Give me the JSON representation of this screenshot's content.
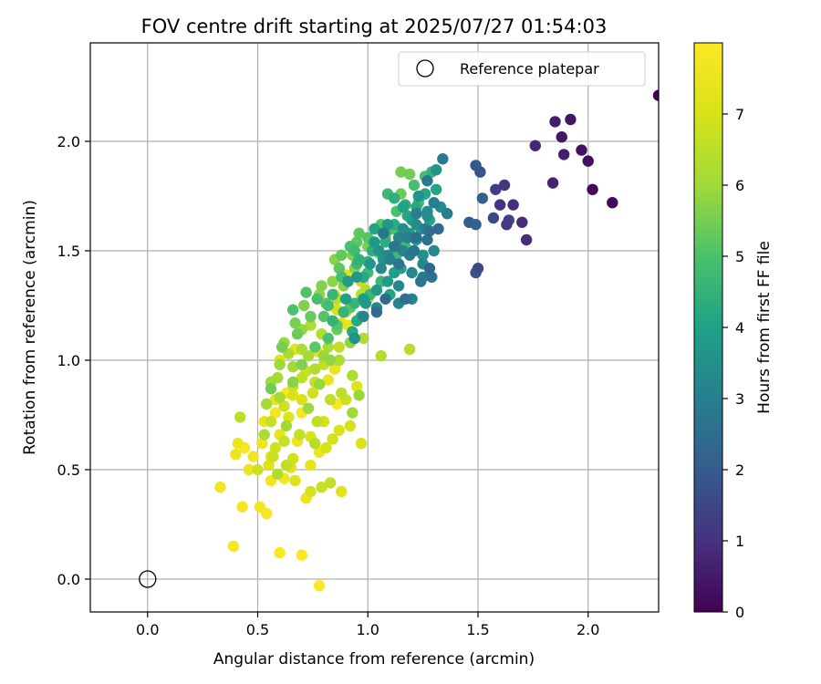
{
  "chart_data": {
    "type": "scatter",
    "title": "FOV centre drift starting at 2025/07/27 01:54:03",
    "xlabel": "Angular distance from reference (arcmin)",
    "ylabel": "Rotation from reference (arcmin)",
    "xlim": [
      -0.26,
      2.32
    ],
    "ylim": [
      -0.15,
      2.45
    ],
    "x_ticks": [
      "0.0",
      "0.5",
      "1.0",
      "1.5",
      "2.0"
    ],
    "x_tick_values": [
      0.0,
      0.5,
      1.0,
      1.5,
      2.0
    ],
    "y_ticks": [
      "0.0",
      "0.5",
      "1.0",
      "1.5",
      "2.0"
    ],
    "y_tick_values": [
      0.0,
      0.5,
      1.0,
      1.5,
      2.0
    ],
    "grid": true,
    "legend": {
      "placement": "top-right",
      "label": "Reference platepar"
    },
    "reference_point": {
      "x": 0.0,
      "y": 0.0
    },
    "colorbar": {
      "label": "Hours from first FF file",
      "colormap": "viridis",
      "range": [
        0,
        8
      ],
      "ticks": [
        "0",
        "1",
        "2",
        "3",
        "4",
        "5",
        "6",
        "7"
      ],
      "tick_values": [
        0,
        1,
        2,
        3,
        4,
        5,
        6,
        7
      ]
    },
    "points": [
      [
        2.32,
        2.21,
        0.0
      ],
      [
        2.02,
        1.78,
        0.1
      ],
      [
        2.11,
        1.72,
        0.15
      ],
      [
        2.0,
        1.91,
        0.25
      ],
      [
        1.97,
        1.96,
        0.35
      ],
      [
        1.92,
        2.1,
        0.4
      ],
      [
        1.88,
        2.02,
        0.45
      ],
      [
        1.85,
        2.09,
        0.55
      ],
      [
        1.89,
        1.94,
        0.6
      ],
      [
        1.84,
        1.81,
        0.7
      ],
      [
        1.76,
        1.98,
        0.8
      ],
      [
        1.7,
        1.63,
        0.85
      ],
      [
        1.72,
        1.55,
        0.9
      ],
      [
        1.66,
        1.71,
        0.95
      ],
      [
        1.6,
        1.71,
        1.05
      ],
      [
        1.62,
        1.8,
        1.1
      ],
      [
        1.63,
        1.62,
        1.2
      ],
      [
        1.58,
        1.78,
        1.3
      ],
      [
        1.64,
        1.64,
        1.4
      ],
      [
        1.57,
        1.65,
        1.5
      ],
      [
        1.5,
        1.42,
        1.6
      ],
      [
        1.49,
        1.4,
        1.7
      ],
      [
        1.51,
        1.86,
        1.8
      ],
      [
        1.49,
        1.89,
        1.9
      ],
      [
        1.46,
        1.63,
        2.0
      ],
      [
        1.52,
        1.74,
        2.1
      ],
      [
        1.49,
        1.62,
        2.2
      ],
      [
        1.28,
        1.42,
        2.3
      ],
      [
        1.32,
        1.6,
        2.4
      ],
      [
        1.28,
        1.59,
        2.5
      ],
      [
        1.29,
        1.38,
        2.6
      ],
      [
        1.24,
        1.36,
        2.7
      ],
      [
        1.27,
        1.82,
        2.8
      ],
      [
        1.34,
        1.92,
        2.85
      ],
      [
        1.36,
        1.67,
        2.9
      ],
      [
        1.3,
        1.72,
        2.95
      ],
      [
        1.22,
        1.67,
        3.0
      ],
      [
        1.18,
        1.56,
        3.05
      ],
      [
        1.14,
        1.56,
        3.1
      ],
      [
        1.2,
        1.28,
        3.15
      ],
      [
        1.14,
        1.26,
        3.2
      ],
      [
        1.04,
        1.24,
        3.25
      ],
      [
        1.06,
        1.42,
        3.3
      ],
      [
        1.09,
        1.48,
        3.35
      ],
      [
        1.16,
        1.6,
        3.4
      ],
      [
        1.27,
        1.68,
        3.45
      ],
      [
        1.25,
        1.48,
        3.5
      ],
      [
        1.05,
        1.5,
        3.55
      ],
      [
        1.23,
        1.75,
        3.6
      ],
      [
        1.31,
        1.87,
        3.65
      ],
      [
        1.09,
        1.62,
        3.7
      ],
      [
        1.03,
        1.54,
        3.75
      ],
      [
        0.91,
        1.36,
        3.8
      ],
      [
        0.98,
        1.28,
        3.85
      ],
      [
        1.12,
        1.4,
        3.9
      ],
      [
        1.2,
        1.64,
        3.95
      ],
      [
        1.22,
        1.55,
        4.0
      ],
      [
        1.16,
        1.7,
        4.05
      ],
      [
        1.03,
        1.6,
        4.1
      ],
      [
        1.1,
        1.3,
        4.15
      ],
      [
        0.93,
        1.13,
        4.2
      ],
      [
        0.95,
        1.18,
        4.25
      ],
      [
        0.97,
        1.2,
        4.3
      ],
      [
        1.17,
        1.71,
        4.35
      ],
      [
        1.12,
        1.74,
        4.4
      ],
      [
        1.08,
        1.58,
        4.45
      ],
      [
        1.0,
        1.45,
        4.5
      ],
      [
        1.29,
        1.86,
        4.55
      ],
      [
        1.24,
        1.75,
        4.6
      ],
      [
        1.15,
        1.6,
        4.65
      ],
      [
        1.09,
        1.76,
        4.7
      ],
      [
        1.0,
        1.4,
        4.75
      ],
      [
        0.94,
        1.5,
        4.8
      ],
      [
        0.88,
        1.38,
        4.85
      ],
      [
        0.82,
        1.25,
        4.9
      ],
      [
        0.77,
        1.28,
        4.95
      ],
      [
        0.66,
        1.23,
        5.0
      ],
      [
        0.72,
        1.31,
        5.05
      ],
      [
        0.8,
        1.2,
        5.1
      ],
      [
        0.86,
        1.16,
        5.15
      ],
      [
        0.92,
        1.24,
        5.2
      ],
      [
        0.96,
        1.58,
        5.25
      ],
      [
        1.02,
        1.54,
        5.3
      ],
      [
        1.05,
        1.49,
        5.35
      ],
      [
        1.15,
        1.76,
        5.4
      ],
      [
        1.19,
        1.85,
        5.45
      ],
      [
        1.15,
        1.86,
        5.5
      ],
      [
        1.08,
        1.56,
        5.55
      ],
      [
        1.0,
        1.52,
        5.6
      ],
      [
        0.93,
        1.48,
        5.65
      ],
      [
        0.89,
        1.34,
        5.7
      ],
      [
        0.84,
        1.36,
        5.75
      ],
      [
        0.78,
        1.3,
        5.8
      ],
      [
        0.7,
        1.14,
        5.85
      ],
      [
        0.62,
        1.08,
        5.9
      ],
      [
        0.6,
        0.98,
        5.95
      ],
      [
        0.56,
        0.9,
        6.0
      ],
      [
        0.66,
        0.97,
        6.05
      ],
      [
        0.73,
        1.02,
        6.1
      ],
      [
        0.82,
        1.06,
        6.15
      ],
      [
        0.87,
        1.0,
        6.2
      ],
      [
        0.93,
        0.93,
        6.25
      ],
      [
        0.98,
        1.1,
        6.3
      ],
      [
        1.06,
        1.02,
        6.35
      ],
      [
        1.19,
        1.05,
        6.4
      ],
      [
        0.42,
        0.74,
        6.45
      ],
      [
        0.88,
        0.85,
        6.5
      ],
      [
        0.83,
        0.82,
        6.55
      ],
      [
        0.77,
        0.72,
        6.6
      ],
      [
        0.69,
        0.66,
        6.65
      ],
      [
        0.62,
        0.63,
        6.7
      ],
      [
        0.57,
        0.56,
        6.75
      ],
      [
        0.5,
        0.5,
        6.8
      ],
      [
        0.58,
        0.6,
        6.85
      ],
      [
        0.66,
        0.55,
        6.9
      ],
      [
        0.74,
        0.4,
        6.95
      ],
      [
        0.81,
        0.6,
        7.0
      ],
      [
        0.87,
        0.68,
        7.05
      ],
      [
        0.97,
        0.62,
        7.1
      ],
      [
        0.88,
        0.4,
        7.15
      ],
      [
        0.95,
        0.88,
        7.2
      ],
      [
        0.9,
        1.39,
        7.25
      ],
      [
        0.77,
        1.04,
        7.3
      ],
      [
        0.67,
        1.05,
        7.35
      ],
      [
        0.58,
        0.82,
        7.4
      ],
      [
        0.53,
        0.72,
        7.45
      ],
      [
        0.46,
        0.5,
        7.5
      ],
      [
        0.41,
        0.62,
        7.55
      ],
      [
        0.4,
        0.57,
        7.6
      ],
      [
        0.33,
        0.42,
        7.65
      ],
      [
        0.43,
        0.33,
        7.7
      ],
      [
        0.51,
        0.33,
        7.75
      ],
      [
        0.54,
        0.3,
        7.8
      ],
      [
        0.39,
        0.15,
        7.85
      ],
      [
        0.6,
        0.12,
        7.9
      ],
      [
        0.7,
        0.11,
        7.95
      ],
      [
        0.78,
        -0.03,
        8.0
      ],
      [
        0.86,
        0.8,
        7.9
      ],
      [
        0.7,
        0.76,
        7.85
      ],
      [
        0.63,
        0.85,
        7.8
      ],
      [
        0.58,
        0.76,
        7.75
      ],
      [
        0.62,
        0.46,
        7.7
      ],
      [
        0.56,
        0.45,
        7.65
      ],
      [
        0.68,
        0.63,
        7.6
      ],
      [
        0.72,
        0.37,
        7.55
      ],
      [
        0.78,
        0.58,
        7.5
      ],
      [
        0.82,
        0.91,
        7.45
      ],
      [
        0.85,
        0.96,
        7.4
      ],
      [
        0.91,
        1.16,
        7.35
      ],
      [
        0.85,
        1.3,
        7.3
      ],
      [
        0.6,
        1.0,
        7.25
      ],
      [
        0.55,
        0.52,
        7.2
      ],
      [
        0.65,
        0.51,
        7.15
      ],
      [
        0.67,
        0.45,
        7.1
      ],
      [
        0.74,
        0.65,
        7.05
      ],
      [
        0.7,
        0.82,
        7.0
      ],
      [
        0.8,
        0.72,
        6.95
      ],
      [
        0.84,
        0.64,
        6.9
      ],
      [
        0.75,
        0.85,
        6.85
      ],
      [
        0.66,
        0.88,
        6.8
      ],
      [
        0.62,
        0.79,
        6.75
      ],
      [
        0.72,
        0.95,
        6.7
      ],
      [
        0.76,
        0.9,
        6.65
      ],
      [
        0.8,
        0.98,
        6.6
      ],
      [
        0.87,
        1.06,
        6.55
      ],
      [
        0.9,
        1.22,
        6.5
      ],
      [
        0.97,
        1.3,
        6.45
      ],
      [
        0.99,
        1.32,
        6.4
      ],
      [
        0.86,
        1.28,
        6.35
      ],
      [
        0.79,
        1.12,
        6.3
      ],
      [
        0.74,
        1.16,
        6.25
      ],
      [
        0.7,
        1.05,
        6.2
      ],
      [
        0.64,
        1.03,
        6.15
      ],
      [
        0.59,
        0.92,
        6.1
      ],
      [
        0.54,
        0.8,
        6.05
      ],
      [
        0.63,
        0.7,
        6.0
      ],
      [
        0.73,
        0.78,
        5.95
      ],
      [
        0.78,
        0.89,
        5.9
      ],
      [
        0.83,
        1.0,
        5.85
      ],
      [
        0.92,
        1.08,
        5.8
      ],
      [
        0.94,
        1.42,
        5.75
      ],
      [
        0.85,
        1.46,
        5.7
      ],
      [
        0.79,
        1.34,
        5.65
      ],
      [
        0.71,
        1.25,
        5.6
      ],
      [
        0.67,
        1.17,
        5.55
      ],
      [
        0.61,
        1.06,
        5.5
      ],
      [
        0.56,
        0.87,
        5.45
      ],
      [
        0.68,
        1.12,
        5.4
      ],
      [
        0.74,
        1.2,
        5.35
      ],
      [
        0.81,
        1.26,
        5.3
      ],
      [
        0.87,
        1.42,
        5.25
      ],
      [
        0.95,
        1.54,
        5.2
      ],
      [
        1.0,
        1.56,
        5.15
      ],
      [
        1.06,
        1.62,
        5.1
      ],
      [
        1.11,
        1.6,
        5.05
      ],
      [
        1.13,
        1.68,
        5.0
      ],
      [
        1.21,
        1.8,
        4.95
      ],
      [
        1.26,
        1.84,
        4.9
      ],
      [
        1.23,
        1.72,
        4.85
      ],
      [
        1.17,
        1.52,
        4.8
      ],
      [
        1.13,
        1.48,
        4.75
      ],
      [
        1.06,
        1.36,
        4.7
      ],
      [
        1.01,
        1.3,
        4.65
      ],
      [
        0.94,
        1.26,
        4.6
      ],
      [
        0.89,
        1.22,
        4.55
      ],
      [
        0.84,
        1.18,
        4.5
      ],
      [
        0.96,
        1.46,
        4.45
      ],
      [
        1.02,
        1.5,
        4.4
      ],
      [
        1.08,
        1.54,
        4.35
      ],
      [
        1.12,
        1.62,
        4.3
      ],
      [
        1.18,
        1.66,
        4.25
      ],
      [
        1.22,
        1.7,
        4.2
      ],
      [
        1.26,
        1.76,
        4.15
      ],
      [
        1.31,
        1.78,
        4.1
      ],
      [
        1.28,
        1.64,
        4.05
      ],
      [
        1.24,
        1.6,
        4.0
      ],
      [
        1.19,
        1.58,
        3.95
      ],
      [
        1.15,
        1.42,
        3.9
      ],
      [
        1.09,
        1.36,
        3.85
      ],
      [
        1.04,
        1.32,
        3.8
      ],
      [
        0.99,
        1.26,
        3.75
      ],
      [
        0.95,
        1.38,
        3.7
      ],
      [
        1.01,
        1.44,
        3.65
      ],
      [
        1.07,
        1.46,
        3.6
      ],
      [
        1.13,
        1.52,
        3.55
      ],
      [
        1.17,
        1.58,
        3.5
      ],
      [
        1.22,
        1.62,
        3.45
      ],
      [
        1.27,
        1.66,
        3.4
      ],
      [
        1.33,
        1.7,
        3.35
      ],
      [
        1.3,
        1.5,
        3.3
      ],
      [
        1.25,
        1.44,
        3.25
      ],
      [
        1.2,
        1.4,
        3.2
      ],
      [
        1.14,
        1.34,
        3.15
      ],
      [
        1.1,
        1.46,
        3.1
      ],
      [
        1.16,
        1.5,
        3.05
      ],
      [
        1.21,
        1.56,
        3.0
      ],
      [
        1.26,
        1.6,
        2.95
      ],
      [
        1.25,
        1.38,
        2.9
      ],
      [
        1.19,
        1.48,
        2.85
      ],
      [
        1.12,
        1.52,
        2.8
      ],
      [
        1.07,
        1.58,
        2.75
      ],
      [
        1.14,
        1.44,
        2.7
      ],
      [
        1.21,
        1.5,
        2.65
      ],
      [
        1.27,
        1.55,
        2.6
      ],
      [
        1.22,
        1.56,
        2.55
      ],
      [
        1.17,
        1.28,
        2.5
      ],
      [
        1.04,
        1.22,
        2.45
      ],
      [
        1.08,
        1.28,
        2.4
      ],
      [
        0.98,
        1.2,
        3.2
      ],
      [
        0.94,
        1.1,
        3.6
      ],
      [
        0.9,
        1.28,
        4.0
      ],
      [
        0.84,
        1.3,
        4.6
      ],
      [
        0.86,
        1.14,
        5.4
      ],
      [
        0.8,
        1.02,
        5.9
      ],
      [
        0.76,
        0.96,
        6.3
      ],
      [
        0.7,
        0.92,
        6.6
      ],
      [
        0.66,
        0.84,
        7.0
      ],
      [
        0.64,
        0.74,
        7.2
      ],
      [
        0.6,
        0.66,
        7.4
      ],
      [
        0.52,
        0.62,
        7.6
      ],
      [
        0.48,
        0.56,
        7.7
      ],
      [
        0.44,
        0.6,
        7.8
      ],
      [
        0.56,
        0.56,
        7.6
      ],
      [
        0.74,
        0.52,
        7.4
      ],
      [
        0.79,
        0.42,
        6.7
      ],
      [
        0.83,
        0.44,
        6.6
      ],
      [
        0.76,
        0.62,
        6.4
      ],
      [
        0.92,
        0.7,
        6.9
      ],
      [
        0.9,
        0.82,
        6.8
      ],
      [
        0.93,
        0.76,
        6.0
      ],
      [
        0.96,
        0.84,
        5.9
      ],
      [
        0.63,
        0.52,
        6.5
      ],
      [
        0.59,
        0.48,
        6.3
      ],
      [
        0.53,
        0.66,
        6.2
      ],
      [
        0.56,
        0.72,
        6.7
      ],
      [
        0.6,
        0.83,
        6.1
      ],
      [
        0.66,
        0.9,
        5.7
      ],
      [
        0.7,
        0.98,
        5.6
      ],
      [
        0.76,
        1.06,
        5.2
      ],
      [
        0.82,
        1.1,
        5.0
      ],
      [
        0.88,
        1.17,
        7.3
      ],
      [
        0.86,
        1.23,
        7.0
      ],
      [
        0.97,
        1.36,
        6.6
      ],
      [
        1.0,
        1.28,
        6.5
      ],
      [
        0.88,
        1.48,
        5.3
      ],
      [
        0.92,
        1.52,
        5.0
      ],
      [
        0.95,
        1.44,
        4.7
      ],
      [
        0.98,
        1.38,
        4.2
      ]
    ]
  }
}
